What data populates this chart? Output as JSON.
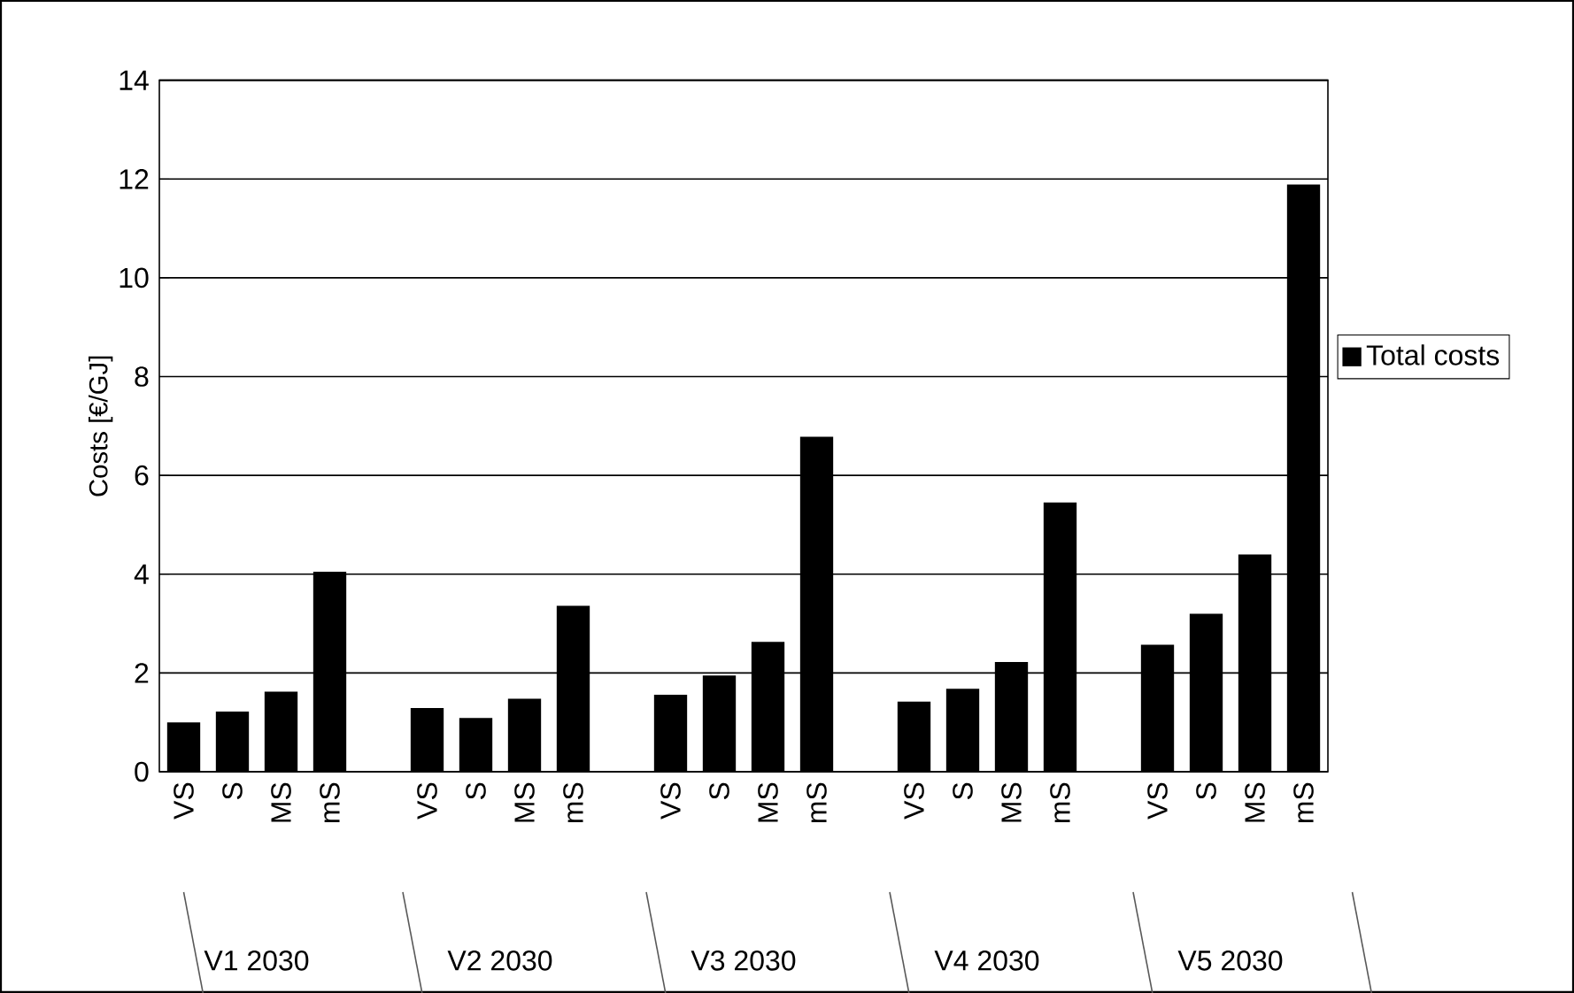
{
  "chart_data": {
    "type": "bar",
    "ylabel": "Costs [€/GJ]",
    "categories": [
      "VS",
      "S",
      "MS",
      "mS",
      null,
      "VS",
      "S",
      "MS",
      "mS",
      null,
      "VS",
      "S",
      "MS",
      "mS",
      null,
      "VS",
      "S",
      "MS",
      "mS",
      null,
      "VS",
      "S",
      "MS",
      "mS"
    ],
    "series": [
      {
        "name": "Total costs",
        "color": "#000000",
        "values": [
          1.0,
          1.22,
          1.62,
          4.05,
          null,
          1.29,
          1.09,
          1.48,
          3.36,
          null,
          1.56,
          1.95,
          2.63,
          6.78,
          null,
          1.42,
          1.68,
          2.22,
          5.45,
          null,
          2.57,
          3.2,
          4.4,
          11.89
        ]
      }
    ],
    "ylim": [
      0,
      14
    ],
    "yticks": [
      0,
      2,
      4,
      6,
      8,
      10,
      12,
      14
    ],
    "grid": "y",
    "legend": "right",
    "annotations": [
      "V1 2030",
      "V2 2030",
      "V3 2030",
      "V4 2030",
      "V5 2030"
    ]
  }
}
